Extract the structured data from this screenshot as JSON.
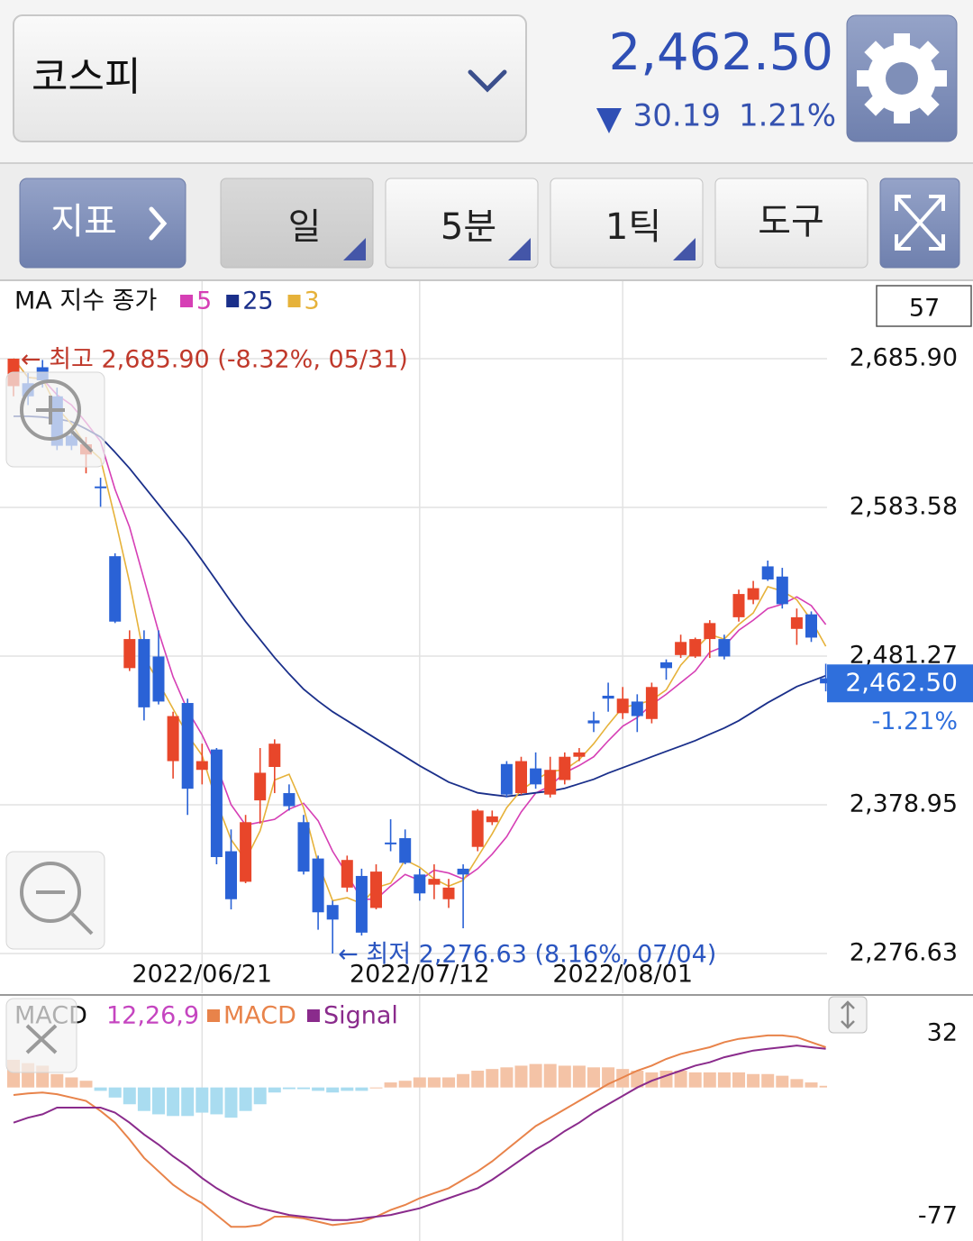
{
  "header": {
    "name": "코스피",
    "price": "2,462.50",
    "change": "30.19",
    "change_pct": "1.21%"
  },
  "toolbar": [
    "지표",
    "일",
    "5분",
    "1틱",
    "도구"
  ],
  "chart_data": [
    {
      "type": "candlestick",
      "legend_title": "MA 지수 종가",
      "visible_count": 57,
      "up_color": "#e8462a",
      "down_color": "#2a62d6",
      "categories": [
        null,
        null,
        null,
        null,
        null,
        null,
        null,
        null,
        null,
        null,
        null,
        null,
        null,
        "2022/06/21",
        null,
        null,
        null,
        null,
        null,
        null,
        null,
        null,
        null,
        null,
        null,
        null,
        null,
        null,
        "2022/07/12",
        null,
        null,
        null,
        null,
        null,
        null,
        null,
        null,
        null,
        null,
        null,
        null,
        null,
        "2022/08/01",
        null,
        null,
        null,
        null,
        null,
        null,
        null,
        null,
        null,
        null,
        null,
        null,
        null,
        null
      ],
      "ohlc": [
        [
          2667,
          2685.9,
          2660,
          2685.9
        ],
        [
          2669,
          2676,
          2654,
          2660
        ],
        [
          2680,
          2685,
          2666,
          2671
        ],
        [
          2660,
          2666,
          2623,
          2626
        ],
        [
          2633,
          2638,
          2623,
          2626
        ],
        [
          2620,
          2632,
          2607,
          2627
        ],
        [
          2598,
          2604,
          2584,
          2597
        ],
        [
          2550,
          2552,
          2504,
          2505
        ],
        [
          2473,
          2499,
          2471,
          2493
        ],
        [
          2493,
          2499,
          2437,
          2446
        ],
        [
          2481,
          2499,
          2448,
          2450
        ],
        [
          2409,
          2443,
          2397,
          2440
        ],
        [
          2449,
          2452,
          2372,
          2390
        ],
        [
          2403,
          2421,
          2393,
          2409
        ],
        [
          2417,
          2418,
          2338,
          2343
        ],
        [
          2347,
          2362,
          2307,
          2314
        ],
        [
          2326,
          2372,
          2325,
          2367
        ],
        [
          2382,
          2418,
          2366,
          2401
        ],
        [
          2405,
          2424,
          2387,
          2421
        ],
        [
          2387,
          2393,
          2375,
          2378
        ],
        [
          2367,
          2372,
          2331,
          2333
        ],
        [
          2342,
          2344,
          2293,
          2305
        ],
        [
          2310,
          2313,
          2276.63,
          2300
        ],
        [
          2322,
          2344,
          2319,
          2341
        ],
        [
          2330,
          2335,
          2289,
          2291
        ],
        [
          2308,
          2338,
          2307,
          2333
        ],
        [
          2353,
          2369,
          2347,
          2352
        ],
        [
          2356,
          2362,
          2338,
          2339
        ],
        [
          2331,
          2335,
          2313,
          2318
        ],
        [
          2324,
          2338,
          2314,
          2328
        ],
        [
          2314,
          2328,
          2308,
          2322
        ],
        [
          2335,
          2338,
          2294,
          2331
        ],
        [
          2350,
          2376,
          2347,
          2375
        ],
        [
          2367,
          2375,
          2365,
          2371
        ],
        [
          2407,
          2409,
          2384,
          2386
        ],
        [
          2387,
          2412,
          2386,
          2409
        ],
        [
          2404,
          2415,
          2390,
          2393
        ],
        [
          2386,
          2412,
          2384,
          2403
        ],
        [
          2396,
          2415,
          2393,
          2412
        ],
        [
          2412,
          2418,
          2409,
          2415
        ],
        [
          2437,
          2443,
          2429,
          2435
        ],
        [
          2454,
          2463,
          2443,
          2452
        ],
        [
          2442,
          2460,
          2438,
          2452
        ],
        [
          2450,
          2455,
          2429,
          2440
        ],
        [
          2438,
          2463,
          2435,
          2460
        ],
        [
          2477,
          2479,
          2465,
          2473
        ],
        [
          2482,
          2496,
          2480,
          2491
        ],
        [
          2481,
          2494,
          2480,
          2493
        ],
        [
          2493,
          2506,
          2480,
          2504
        ],
        [
          2493,
          2496,
          2479,
          2481
        ],
        [
          2508,
          2527,
          2505,
          2524
        ],
        [
          2520,
          2533,
          2517,
          2528
        ],
        [
          2543,
          2547,
          2533,
          2534
        ],
        [
          2536,
          2542,
          2514,
          2517
        ],
        [
          2500,
          2514,
          2489,
          2508
        ],
        [
          2510,
          2512,
          2491,
          2494
        ],
        [
          2466,
          2476,
          2457,
          2462.5
        ]
      ],
      "series": [
        {
          "name": "5",
          "color": "#d63fb5",
          "values": [
            2686,
            2673,
            2672,
            2661,
            2654,
            2642,
            2629,
            2596,
            2570,
            2534,
            2498,
            2467,
            2444,
            2427,
            2406,
            2379,
            2365,
            2367,
            2369,
            2376,
            2380,
            2368,
            2347,
            2331,
            2314,
            2314,
            2323,
            2331,
            2327,
            2334,
            2332,
            2328,
            2335,
            2345,
            2357,
            2374,
            2387,
            2392,
            2401,
            2406,
            2412,
            2423,
            2433,
            2439,
            2448,
            2455,
            2463,
            2471,
            2484,
            2488,
            2499,
            2506,
            2514,
            2517,
            2522,
            2516,
            2503
          ]
        },
        {
          "name": "25",
          "color": "#1a2f8a",
          "values": [
            2646.3,
            2646.3,
            2645.7,
            2644.5,
            2642.6,
            2637.6,
            2632.1,
            2621.5,
            2610.4,
            2598,
            2585.6,
            2573.2,
            2560.8,
            2547.1,
            2532.9,
            2518.6,
            2505,
            2492.6,
            2480.2,
            2469,
            2458.5,
            2450.4,
            2443,
            2436.8,
            2430.6,
            2424.4,
            2418.2,
            2412,
            2405.8,
            2400.2,
            2394.6,
            2390.9,
            2387.2,
            2385.9,
            2384.7,
            2385.9,
            2387.2,
            2388.4,
            2390.3,
            2393.4,
            2396.5,
            2400.8,
            2404.5,
            2408.2,
            2412,
            2415.7,
            2419.4,
            2423.1,
            2427.5,
            2431.8,
            2436.8,
            2443,
            2449.2,
            2454.7,
            2460.3,
            2464,
            2467.8
          ]
        },
        {
          "name": "3",
          "color": "#e6b23a",
          "values": [
            2686,
            2673,
            2672,
            2652,
            2641,
            2626,
            2617,
            2576,
            2532,
            2481,
            2463,
            2445,
            2427,
            2413,
            2381,
            2355,
            2341,
            2361,
            2396,
            2400,
            2377,
            2339,
            2313,
            2315,
            2311,
            2322,
            2325,
            2341,
            2336,
            2328,
            2323,
            2327,
            2343,
            2359,
            2377,
            2389,
            2396,
            2402,
            2403,
            2410,
            2421,
            2434,
            2446,
            2448,
            2451,
            2458,
            2475,
            2486,
            2496,
            2493,
            2503,
            2511,
            2529,
            2526,
            2520,
            2506,
            2488
          ]
        }
      ],
      "ylim": [
        2250.6,
        2738.6
      ],
      "yticks": [
        {
          "value": 2685.9,
          "label": "2,685.90"
        },
        {
          "value": 2583.58,
          "label": "2,583.58"
        },
        {
          "value": 2481.27,
          "label": "2,481.27"
        },
        {
          "value": 2378.95,
          "label": "2,378.95"
        },
        {
          "value": 2276.63,
          "label": "2,276.63"
        }
      ],
      "grid": true,
      "last_price": {
        "value": 2462.5,
        "label": "2,462.50"
      },
      "last_change": "-1.21%",
      "high_annotation": "← 최고 2,685.90 (-8.32%, 05/31)",
      "low_annotation": "← 최저 2,276.63 (8.16%, 07/04)"
    },
    {
      "type": "macd",
      "title": "MACD",
      "params": "12,26,9",
      "params_color": "#c545c0",
      "series": [
        {
          "name": "MACD",
          "color": "#e8834a",
          "values": [
            -4.5,
            -3.5,
            -3,
            -4,
            -6,
            -8,
            -14,
            -21,
            -31,
            -42,
            -50,
            -58,
            -64,
            -69,
            -76,
            -83,
            -83,
            -82,
            -77,
            -77,
            -78,
            -80,
            -82,
            -81,
            -80,
            -77,
            -73,
            -70,
            -66,
            -63,
            -60,
            -55,
            -50,
            -44,
            -37,
            -30,
            -23,
            -18,
            -13,
            -8,
            -3,
            2,
            6,
            10,
            13,
            17,
            20,
            22,
            24,
            27,
            29,
            30,
            31,
            31,
            30,
            27,
            24
          ]
        },
        {
          "name": "Signal",
          "color": "#8a2b8c",
          "values": [
            -21,
            -18,
            -16,
            -12,
            -12,
            -12,
            -12,
            -15,
            -21,
            -28,
            -34,
            -41,
            -47,
            -54,
            -60,
            -65,
            -69,
            -72,
            -74,
            -76,
            -77,
            -78,
            -79,
            -79,
            -78,
            -77,
            -76,
            -74,
            -72,
            -69,
            -66,
            -63,
            -60,
            -55,
            -49,
            -43,
            -37,
            -32,
            -26,
            -21,
            -15,
            -10,
            -5,
            0,
            4,
            7,
            10,
            13,
            15,
            18,
            20,
            22,
            23,
            24,
            25,
            24,
            23
          ]
        }
      ],
      "histogram": {
        "up_color": "#f4c3a6",
        "down_color": "#a9dcf0",
        "values": [
          16.5,
          14.5,
          13,
          8,
          6,
          4,
          -2,
          -6,
          -10,
          -14,
          -16,
          -17,
          -17,
          -15,
          -16,
          -18,
          -14,
          -10,
          -3,
          -1,
          -1,
          -2,
          -3,
          -2,
          -2,
          0,
          3,
          4,
          6,
          6,
          6,
          8,
          10,
          11,
          12,
          13,
          14,
          14,
          13,
          13,
          12,
          12,
          11,
          10,
          9,
          10,
          10,
          9,
          9,
          9,
          9,
          8,
          8,
          7,
          5,
          3,
          1
        ]
      },
      "ylim": [
        -91.5,
        54.6
      ],
      "yticks": [
        32,
        -77
      ]
    }
  ]
}
